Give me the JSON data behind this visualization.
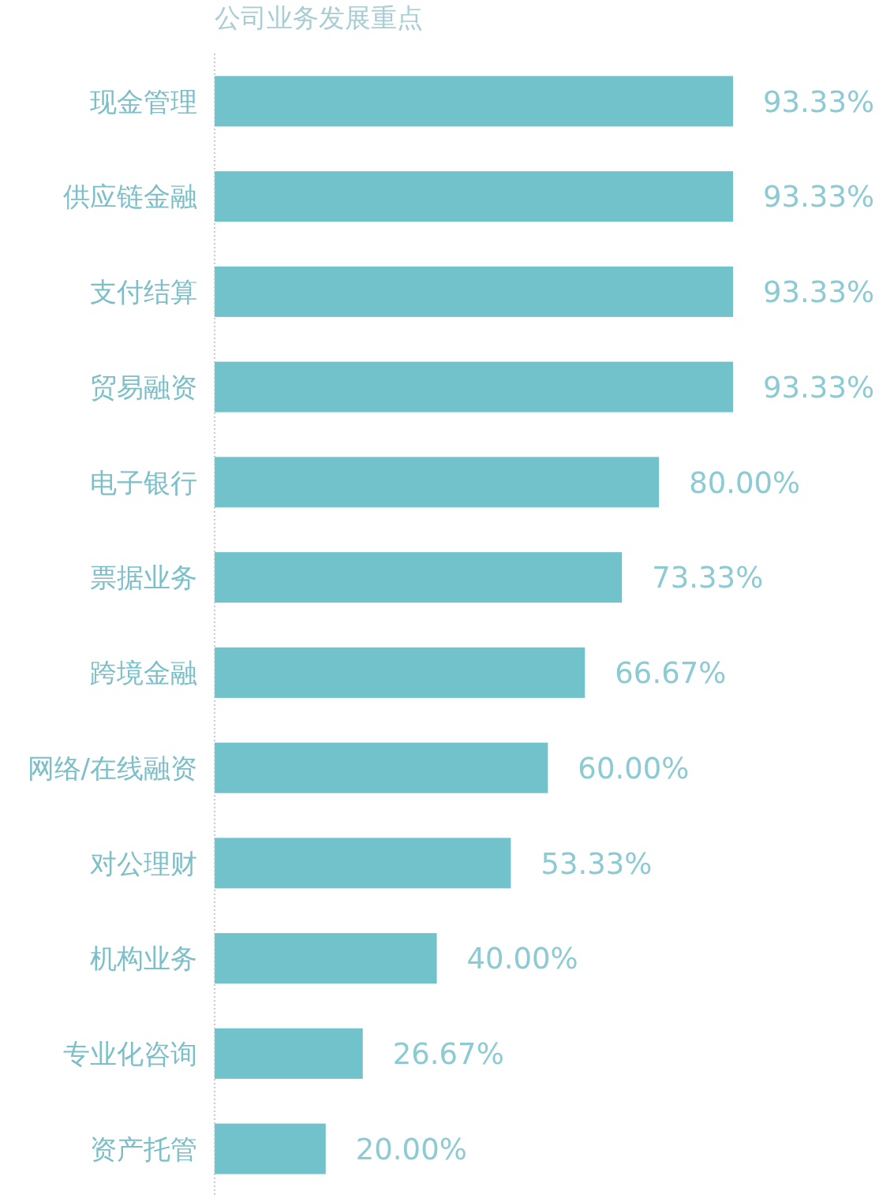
{
  "chart_data": {
    "type": "bar",
    "orientation": "horizontal",
    "title": "公司业务发展重点",
    "categories": [
      "现金管理",
      "供应链金融",
      "支付结算",
      "贸易融资",
      "电子银行",
      "票据业务",
      "跨境金融",
      "网络/在线融资",
      "对公理财",
      "机构业务",
      "专业化咨询",
      "资产托管"
    ],
    "values": [
      93.33,
      93.33,
      93.33,
      93.33,
      80,
      73.33,
      66.67,
      60,
      53.33,
      40,
      26.67,
      20
    ],
    "value_labels": [
      "93.33%",
      "93.33%",
      "93.33%",
      "93.33%",
      "80.00%",
      "73.33%",
      "66.67%",
      "60.00%",
      "53.33%",
      "40.00%",
      "26.67%",
      "20.00%"
    ],
    "color": "#72c2cb"
  }
}
